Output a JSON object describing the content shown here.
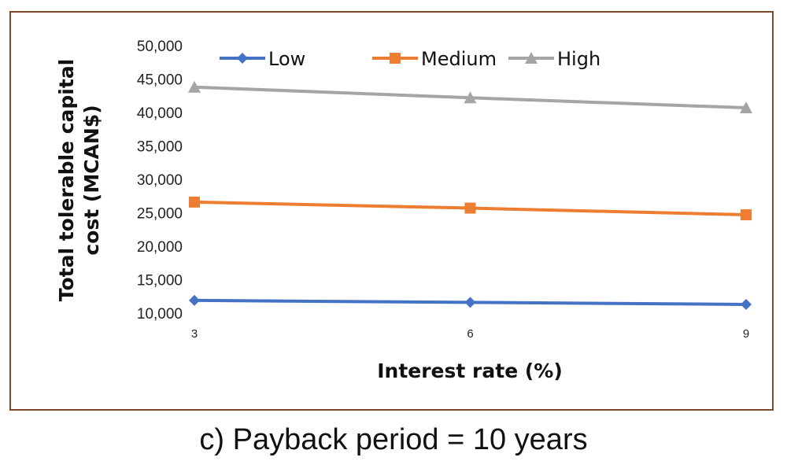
{
  "chart_data": {
    "type": "line",
    "x": [
      3,
      6,
      9
    ],
    "x_tick_labels": [
      "3",
      "6",
      "9"
    ],
    "xlabel": "Interest rate (%)",
    "ylabel_lines": [
      "Total tolerable capital",
      "cost (MCAN$)"
    ],
    "ylim": [
      10000,
      50000
    ],
    "y_ticks": [
      10000,
      15000,
      20000,
      25000,
      30000,
      35000,
      40000,
      45000,
      50000
    ],
    "y_tick_labels": [
      "10,000",
      "15,000",
      "20,000",
      "25,000",
      "30,000",
      "35,000",
      "40,000",
      "45,000",
      "50,000"
    ],
    "grid": false,
    "legend_position": "top",
    "series": [
      {
        "name": "Low",
        "values": [
          11900,
          11600,
          11300
        ],
        "color": "#4472c4",
        "marker": "diamond"
      },
      {
        "name": "Medium",
        "values": [
          26600,
          25700,
          24700
        ],
        "color": "#ed7d31",
        "marker": "square"
      },
      {
        "name": "High",
        "values": [
          43800,
          42200,
          40700
        ],
        "color": "#a5a5a5",
        "marker": "triangle"
      }
    ]
  },
  "caption": "c) Payback period = 10 years"
}
